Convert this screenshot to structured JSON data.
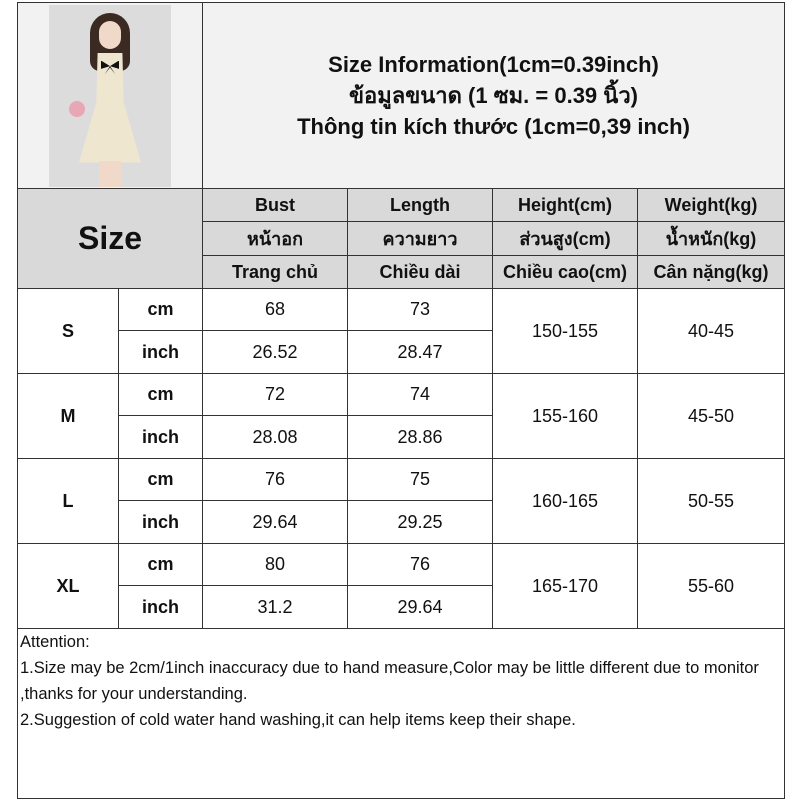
{
  "title_lines": [
    "Size Information(1cm=0.39inch)",
    "ข้อมูลขนาด (1 ซม. = 0.39 นิ้ว)",
    "Thông tin kích thước (1cm=0,39 inch)"
  ],
  "size_header": "Size",
  "columns": [
    {
      "en": "Bust",
      "th": "หน้าอก",
      "vi": "Trang chủ"
    },
    {
      "en": "Length",
      "th": "ความยาว",
      "vi": "Chiều dài"
    },
    {
      "en": "Height(cm)",
      "th": "ส่วนสูง(cm)",
      "vi": "Chiều cao(cm)"
    },
    {
      "en": "Weight(kg)",
      "th": "น้ำหนัก(kg)",
      "vi": "Cân nặng(kg)"
    }
  ],
  "unit_cm": "cm",
  "unit_inch": "inch",
  "rows": [
    {
      "size": "S",
      "bust_cm": "68",
      "length_cm": "73",
      "bust_inch": "26.52",
      "length_inch": "28.47",
      "height": "150-155",
      "weight": "40-45"
    },
    {
      "size": "M",
      "bust_cm": "72",
      "length_cm": "74",
      "bust_inch": "28.08",
      "length_inch": "28.86",
      "height": "155-160",
      "weight": "45-50"
    },
    {
      "size": "L",
      "bust_cm": "76",
      "length_cm": "75",
      "bust_inch": "29.64",
      "length_inch": "29.25",
      "height": "160-165",
      "weight": "50-55"
    },
    {
      "size": "XL",
      "bust_cm": "80",
      "length_cm": "76",
      "bust_inch": "31.2",
      "length_inch": "29.64",
      "height": "165-170",
      "weight": "55-60"
    }
  ],
  "attention": {
    "heading": "Attention:",
    "note1": "1.Size may be 2cm/1inch inaccuracy due to hand measure,Color may be little different due to monitor ,thanks for your understanding.",
    "note2": "2.Suggestion of cold water hand washing,it can help items keep their shape."
  }
}
